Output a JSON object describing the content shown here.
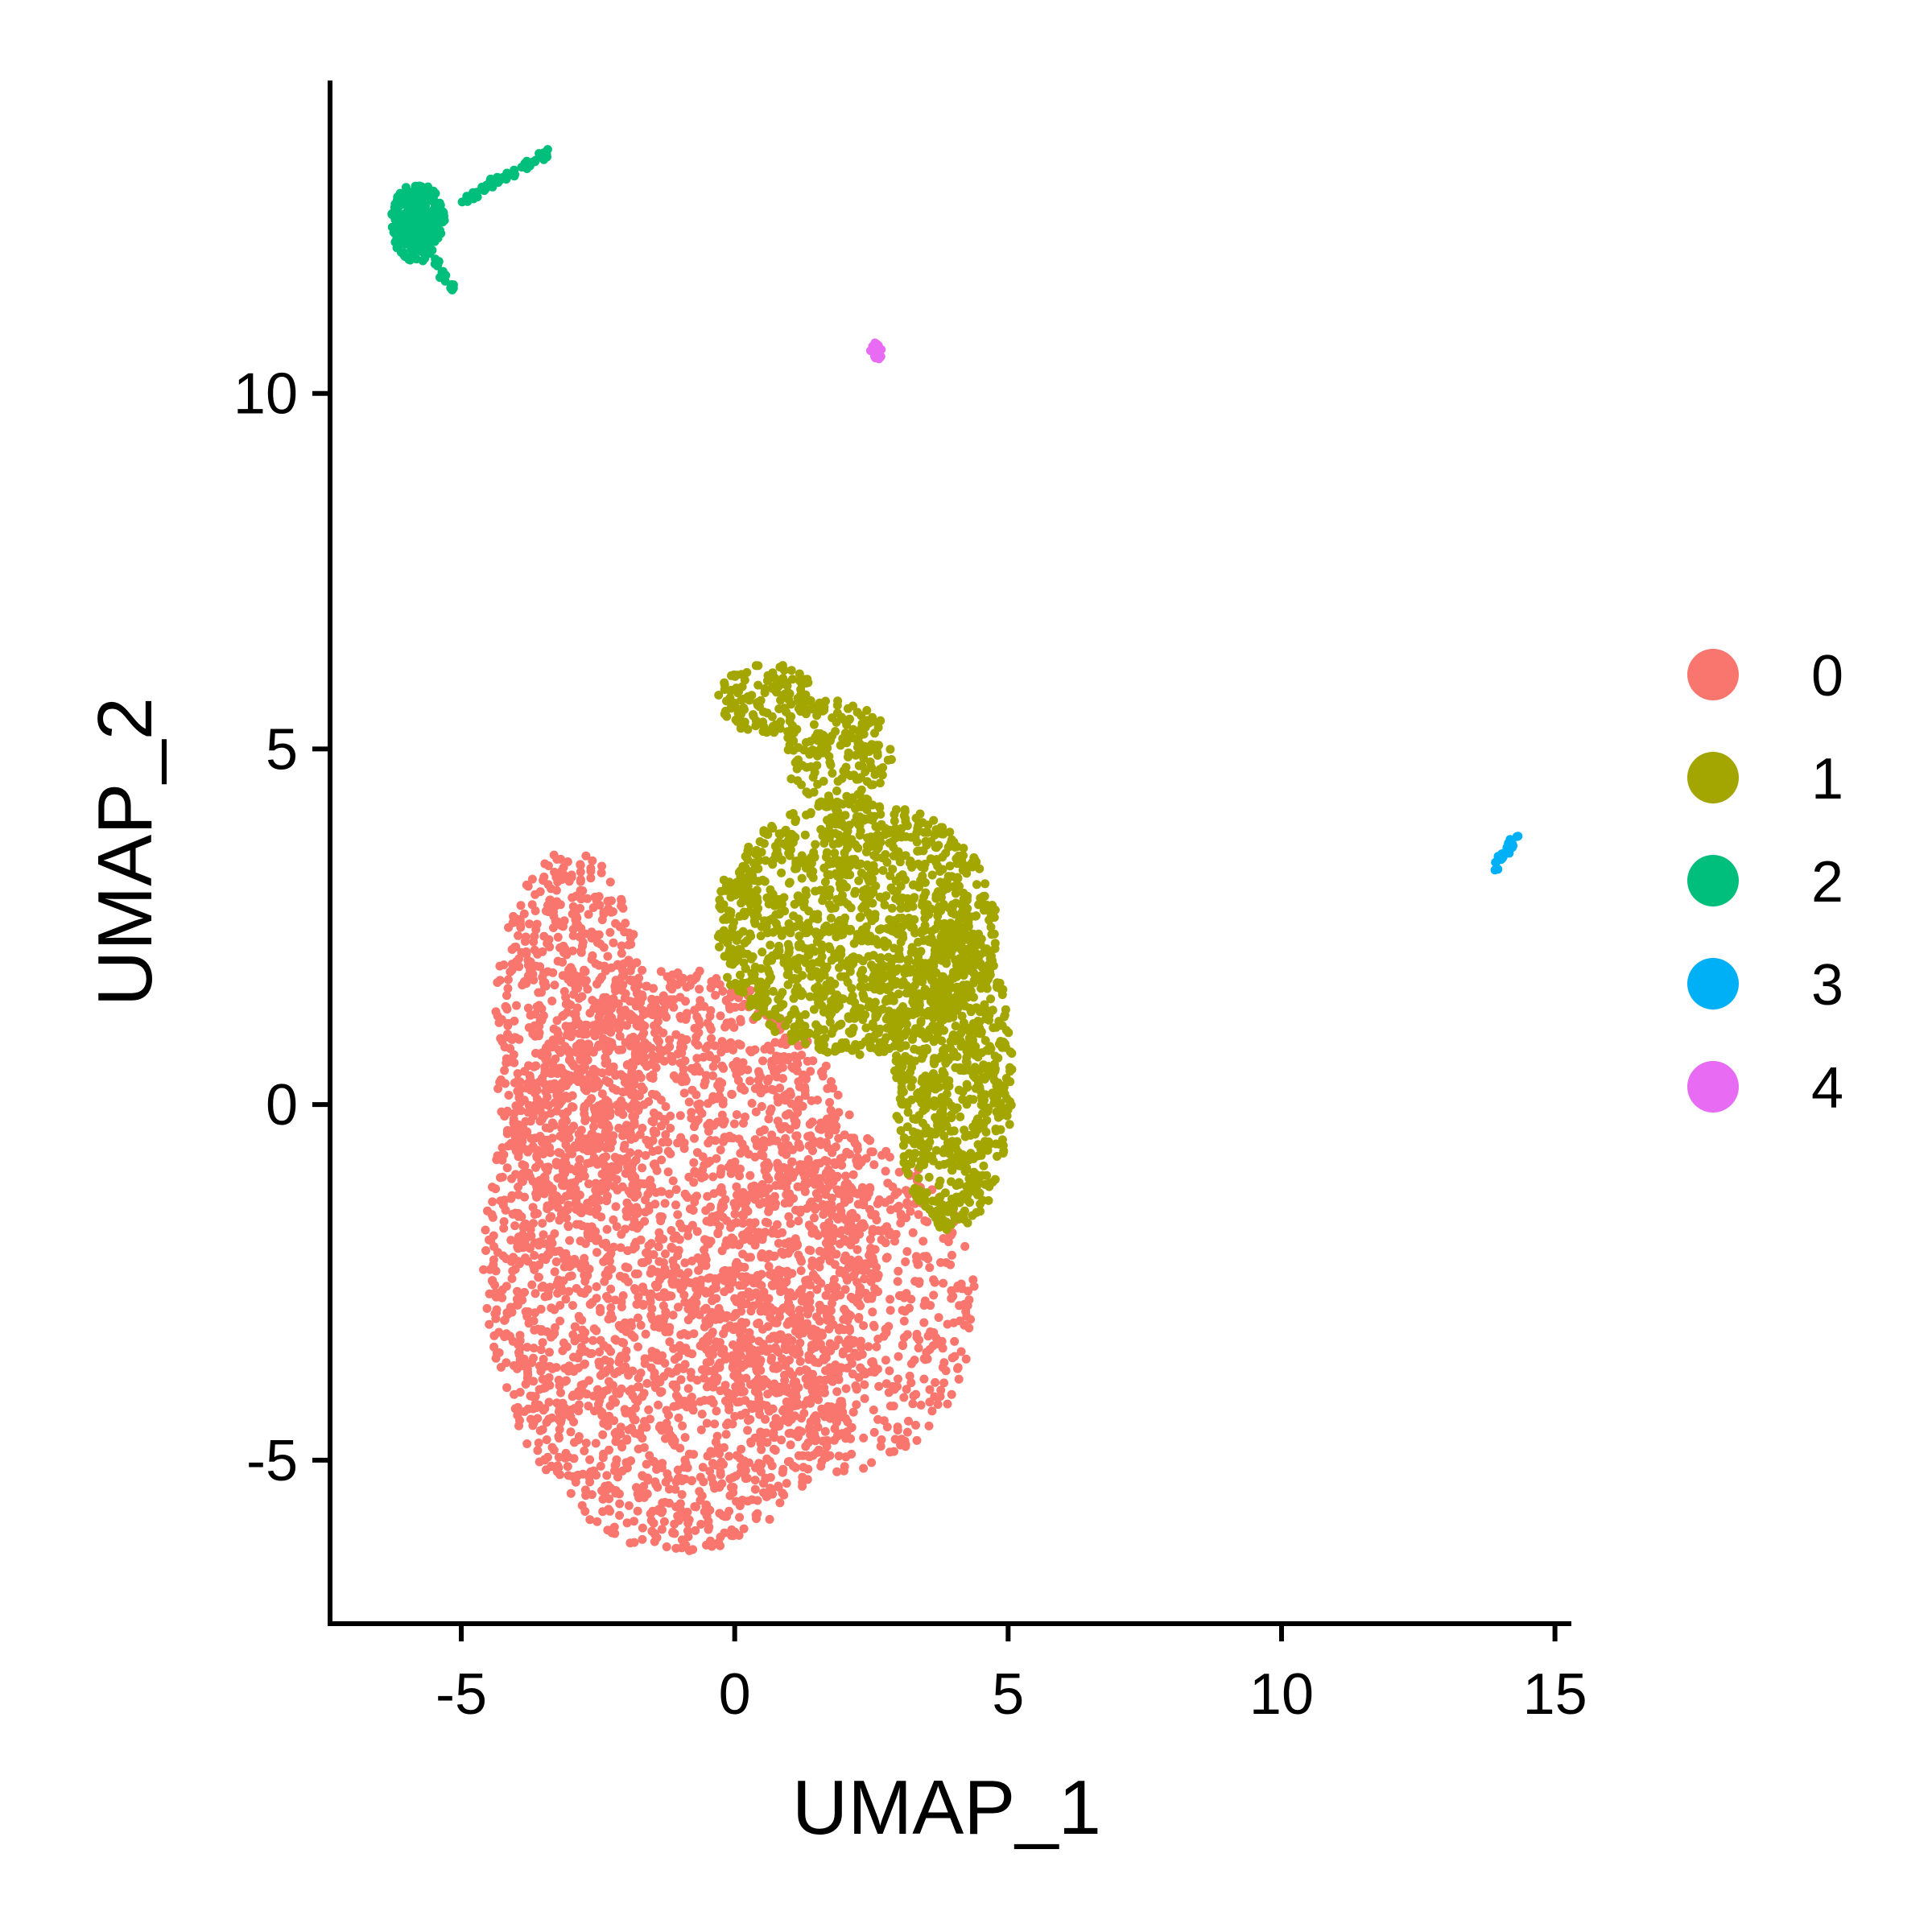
{
  "chart_data": {
    "type": "scatter",
    "xlabel": "UMAP_1",
    "ylabel": "UMAP_2",
    "xlim": [
      -7.4,
      15.3
    ],
    "ylim": [
      -7.3,
      14.4
    ],
    "xticks": [
      -5,
      0,
      5,
      10,
      15
    ],
    "yticks": [
      -5,
      0,
      5,
      10
    ],
    "xtick_labels": [
      "-5",
      "0",
      "5",
      "10",
      "15"
    ],
    "ytick_labels": [
      "-5",
      "0",
      "5",
      "10"
    ],
    "grid": false,
    "legend_position": "right",
    "series": [
      {
        "name": "0",
        "color": "#F8766D",
        "clusters": [
          {
            "shape": "ellipse",
            "center": [
              -1.0,
              -2.2
            ],
            "radius": [
              3.6,
              4.1
            ],
            "count": 2600
          },
          {
            "shape": "ellipse",
            "center": [
              -3.0,
              1.0
            ],
            "radius": [
              1.4,
              2.6
            ],
            "count": 700
          },
          {
            "shape": "ellipse",
            "center": [
              1.8,
              -2.8
            ],
            "radius": [
              2.6,
              2.4
            ],
            "count": 700
          }
        ]
      },
      {
        "name": "1",
        "color": "#A3A500",
        "clusters": [
          {
            "shape": "ellipse",
            "center": [
              2.2,
              2.5
            ],
            "radius": [
              2.6,
              1.8
            ],
            "count": 1300
          },
          {
            "shape": "ellipse",
            "center": [
              4.0,
              0.4
            ],
            "radius": [
              1.1,
              2.2
            ],
            "count": 700
          },
          {
            "shape": "ellipse",
            "center": [
              0.6,
              5.7
            ],
            "radius": [
              0.9,
              0.5
            ],
            "count": 140
          },
          {
            "shape": "ellipse",
            "center": [
              1.9,
              4.9
            ],
            "radius": [
              1.0,
              0.8
            ],
            "count": 180
          }
        ]
      },
      {
        "name": "2",
        "color": "#00BF7D",
        "clusters": [
          {
            "shape": "ellipse",
            "center": [
              -5.8,
              12.4
            ],
            "radius": [
              0.5,
              0.55
            ],
            "count": 260
          },
          {
            "shape": "line",
            "from": [
              -5.0,
              12.7
            ],
            "to": [
              -3.4,
              13.4
            ],
            "count": 60
          },
          {
            "shape": "line",
            "from": [
              -5.6,
              12.0
            ],
            "to": [
              -5.1,
              11.4
            ],
            "count": 20
          }
        ]
      },
      {
        "name": "3",
        "color": "#00B0F6",
        "clusters": [
          {
            "shape": "line",
            "from": [
              13.9,
              3.35
            ],
            "to": [
              14.3,
              3.75
            ],
            "count": 30
          }
        ]
      },
      {
        "name": "4",
        "color": "#E76BF3",
        "clusters": [
          {
            "shape": "ellipse",
            "center": [
              2.6,
              10.6
            ],
            "radius": [
              0.12,
              0.12
            ],
            "count": 25
          }
        ]
      }
    ]
  }
}
